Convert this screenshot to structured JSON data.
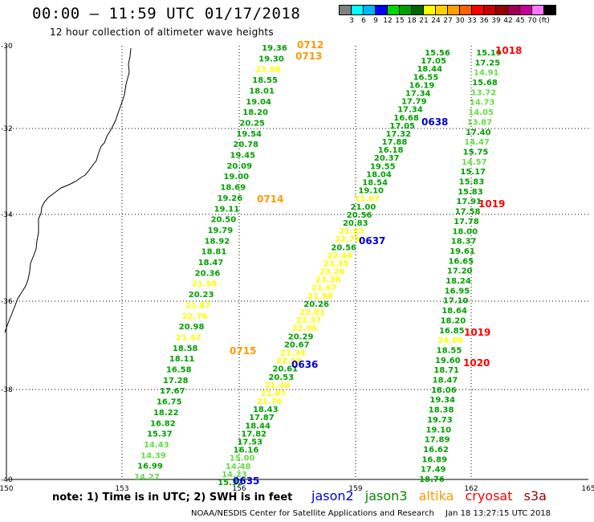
{
  "header": {
    "title": "00:00 – 11:59 UTC 01/17/2018",
    "subtitle": "12 hour collection of altimeter wave heights"
  },
  "legend": {
    "colors": [
      "#808080",
      "#00ffff",
      "#00b4ff",
      "#0000ff",
      "#00d700",
      "#00a000",
      "#006400",
      "#ffff00",
      "#ffd000",
      "#ffa000",
      "#ff6000",
      "#ff0000",
      "#c80000",
      "#960000",
      "#a00050",
      "#c80096",
      "#ff78ff",
      "#000000"
    ],
    "labels": [
      "3",
      "6",
      "9",
      "12",
      "15",
      "18",
      "21",
      "24",
      "27",
      "30",
      "33",
      "36",
      "39",
      "42",
      "45",
      "70",
      "(ft)"
    ]
  },
  "axes": {
    "x_ticks": [
      "150",
      "153",
      "156",
      "159",
      "162",
      "165"
    ],
    "y_ticks": [
      "-30",
      "-32",
      "-34",
      "-36",
      "-38",
      "-40"
    ]
  },
  "colors": {
    "light_green": "#66dd44",
    "green": "#00a000",
    "dark_green": "#006400",
    "yellow": "#ffff00",
    "jason2": "#0000cc",
    "jason3": "#008800",
    "altika": "#ff9900",
    "cryosat": "#ff0000",
    "s3a": "#990000"
  },
  "tracks": [
    {
      "name": "track-a",
      "points": [
        {
          "v": "19.36",
          "c": "g"
        },
        {
          "v": "19.30",
          "c": "g"
        },
        {
          "v": "21.06",
          "c": "y"
        },
        {
          "v": "18.55",
          "c": "g"
        },
        {
          "v": "18.01",
          "c": "g"
        },
        {
          "v": "19.04",
          "c": "g"
        },
        {
          "v": "18.20",
          "c": "g"
        },
        {
          "v": "20.25",
          "c": "g"
        },
        {
          "v": "19.54",
          "c": "g"
        },
        {
          "v": "20.78",
          "c": "g"
        },
        {
          "v": "19.45",
          "c": "g"
        },
        {
          "v": "20.09",
          "c": "g"
        },
        {
          "v": "19.00",
          "c": "g"
        },
        {
          "v": "18.69",
          "c": "g"
        },
        {
          "v": "19.26",
          "c": "g"
        },
        {
          "v": "19.11",
          "c": "g"
        },
        {
          "v": "20.50",
          "c": "g"
        },
        {
          "v": "19.79",
          "c": "g"
        },
        {
          "v": "18.92",
          "c": "g"
        },
        {
          "v": "18.81",
          "c": "g"
        },
        {
          "v": "18.47",
          "c": "g"
        },
        {
          "v": "20.36",
          "c": "g"
        },
        {
          "v": "21.58",
          "c": "y"
        },
        {
          "v": "20.23",
          "c": "g"
        },
        {
          "v": "21.87",
          "c": "y"
        },
        {
          "v": "22.76",
          "c": "y"
        },
        {
          "v": "20.98",
          "c": "g"
        },
        {
          "v": "21.47",
          "c": "y"
        },
        {
          "v": "18.58",
          "c": "g"
        },
        {
          "v": "18.11",
          "c": "g"
        },
        {
          "v": "16.58",
          "c": "g"
        },
        {
          "v": "17.28",
          "c": "g"
        },
        {
          "v": "17.67",
          "c": "g"
        },
        {
          "v": "16.75",
          "c": "g"
        },
        {
          "v": "18.22",
          "c": "g"
        },
        {
          "v": "16.82",
          "c": "g"
        },
        {
          "v": "15.37",
          "c": "g"
        },
        {
          "v": "14.43",
          "c": "l"
        },
        {
          "v": "14.39",
          "c": "l"
        },
        {
          "v": "16.99",
          "c": "g"
        },
        {
          "v": "14.27",
          "c": "l"
        }
      ]
    },
    {
      "name": "track-b",
      "points": [
        {
          "v": "15.32",
          "c": "g"
        },
        {
          "v": "14.23",
          "c": "l"
        },
        {
          "v": "14.48",
          "c": "l"
        },
        {
          "v": "15.00",
          "c": "l"
        },
        {
          "v": "16.16",
          "c": "g"
        },
        {
          "v": "17.53",
          "c": "g"
        },
        {
          "v": "17.82",
          "c": "g"
        },
        {
          "v": "18.44",
          "c": "g"
        },
        {
          "v": "17.87",
          "c": "g"
        },
        {
          "v": "18.43",
          "c": "g"
        },
        {
          "v": "21.76",
          "c": "y"
        },
        {
          "v": "21.87",
          "c": "y"
        },
        {
          "v": "21.49",
          "c": "y"
        },
        {
          "v": "20.53",
          "c": "g"
        },
        {
          "v": "20.61",
          "c": "g"
        },
        {
          "v": "22.59",
          "c": "y"
        },
        {
          "v": "21.34",
          "c": "y"
        },
        {
          "v": "20.67",
          "c": "g"
        },
        {
          "v": "20.29",
          "c": "g"
        },
        {
          "v": "22.96",
          "c": "y"
        },
        {
          "v": "23.37",
          "c": "y"
        },
        {
          "v": "22.81",
          "c": "y"
        },
        {
          "v": "20.26",
          "c": "g"
        },
        {
          "v": "21.98",
          "c": "y"
        },
        {
          "v": "21.67",
          "c": "y"
        },
        {
          "v": "23.36",
          "c": "y"
        },
        {
          "v": "23.26",
          "c": "y"
        },
        {
          "v": "23.35",
          "c": "y"
        },
        {
          "v": "22.46",
          "c": "y"
        },
        {
          "v": "20.56",
          "c": "g"
        },
        {
          "v": "22.78",
          "c": "y"
        },
        {
          "v": "21.83",
          "c": "y"
        },
        {
          "v": "20.83",
          "c": "g"
        },
        {
          "v": "20.56",
          "c": "g"
        },
        {
          "v": "21.00",
          "c": "g"
        },
        {
          "v": "21.67",
          "c": "y"
        },
        {
          "v": "19.10",
          "c": "g"
        },
        {
          "v": "18.54",
          "c": "g"
        },
        {
          "v": "18.04",
          "c": "g"
        },
        {
          "v": "19.55",
          "c": "g"
        },
        {
          "v": "20.37",
          "c": "g"
        },
        {
          "v": "16.18",
          "c": "g"
        },
        {
          "v": "17.88",
          "c": "g"
        },
        {
          "v": "17.32",
          "c": "g"
        },
        {
          "v": "17.05",
          "c": "g"
        },
        {
          "v": "16.68",
          "c": "g"
        },
        {
          "v": "17.34",
          "c": "g"
        },
        {
          "v": "17.79",
          "c": "g"
        },
        {
          "v": "17.34",
          "c": "g"
        },
        {
          "v": "16.19",
          "c": "g"
        },
        {
          "v": "16.55",
          "c": "g"
        },
        {
          "v": "18.44",
          "c": "g"
        },
        {
          "v": "17.05",
          "c": "g"
        },
        {
          "v": "15.56",
          "c": "g"
        }
      ]
    },
    {
      "name": "track-c",
      "points": [
        {
          "v": "15.19",
          "c": "g"
        },
        {
          "v": "17.25",
          "c": "g"
        },
        {
          "v": "14.91",
          "c": "l"
        },
        {
          "v": "15.68",
          "c": "g"
        },
        {
          "v": "13.72",
          "c": "l"
        },
        {
          "v": "14.73",
          "c": "l"
        },
        {
          "v": "14.05",
          "c": "l"
        },
        {
          "v": "13.87",
          "c": "l"
        },
        {
          "v": "17.40",
          "c": "g"
        },
        {
          "v": "14.47",
          "c": "l"
        },
        {
          "v": "15.75",
          "c": "g"
        },
        {
          "v": "14.57",
          "c": "l"
        },
        {
          "v": "15.17",
          "c": "g"
        },
        {
          "v": "15.83",
          "c": "g"
        },
        {
          "v": "15.83",
          "c": "g"
        },
        {
          "v": "17.91",
          "c": "g"
        },
        {
          "v": "17.58",
          "c": "g"
        },
        {
          "v": "17.78",
          "c": "g"
        },
        {
          "v": "18.00",
          "c": "g"
        },
        {
          "v": "18.37",
          "c": "g"
        },
        {
          "v": "19.61",
          "c": "g"
        },
        {
          "v": "16.65",
          "c": "g"
        },
        {
          "v": "17.20",
          "c": "g"
        },
        {
          "v": "18.24",
          "c": "g"
        },
        {
          "v": "16.95",
          "c": "g"
        },
        {
          "v": "17.10",
          "c": "g"
        },
        {
          "v": "18.64",
          "c": "g"
        },
        {
          "v": "18.20",
          "c": "g"
        },
        {
          "v": "16.85",
          "c": "g"
        },
        {
          "v": "24.09",
          "c": "y"
        },
        {
          "v": "18.55",
          "c": "g"
        },
        {
          "v": "19.60",
          "c": "g"
        },
        {
          "v": "18.71",
          "c": "g"
        },
        {
          "v": "18.47",
          "c": "g"
        },
        {
          "v": "18.06",
          "c": "g"
        },
        {
          "v": "19.34",
          "c": "g"
        },
        {
          "v": "18.38",
          "c": "g"
        },
        {
          "v": "19.73",
          "c": "g"
        },
        {
          "v": "19.10",
          "c": "g"
        },
        {
          "v": "17.89",
          "c": "g"
        },
        {
          "v": "16.62",
          "c": "g"
        },
        {
          "v": "16.89",
          "c": "g"
        },
        {
          "v": "17.49",
          "c": "g"
        },
        {
          "v": "18.76",
          "c": "g"
        }
      ]
    }
  ],
  "pass_labels": [
    {
      "text": "0712",
      "sat": "altika"
    },
    {
      "text": "0713",
      "sat": "altika"
    },
    {
      "text": "0714",
      "sat": "altika"
    },
    {
      "text": "0715",
      "sat": "altika"
    },
    {
      "text": "0638",
      "sat": "jason2"
    },
    {
      "text": "0637",
      "sat": "jason2"
    },
    {
      "text": "0636",
      "sat": "jason2"
    },
    {
      "text": "0635",
      "sat": "jason2"
    },
    {
      "text": "1018",
      "sat": "cryosat"
    },
    {
      "text": "1019",
      "sat": "cryosat"
    },
    {
      "text": "1019",
      "sat": "cryosat"
    },
    {
      "text": "1020",
      "sat": "cryosat"
    }
  ],
  "footer": {
    "note": "note:  1) Time is in UTC;  2) SWH is in feet",
    "satellites": [
      "jason2",
      "jason3",
      "altika",
      "cryosat",
      "s3a"
    ],
    "credit": "NOAA/NESDIS Center for Satellite Applications and Research",
    "timestamp": "Jan 18 13:27:15 UTC 2018"
  }
}
